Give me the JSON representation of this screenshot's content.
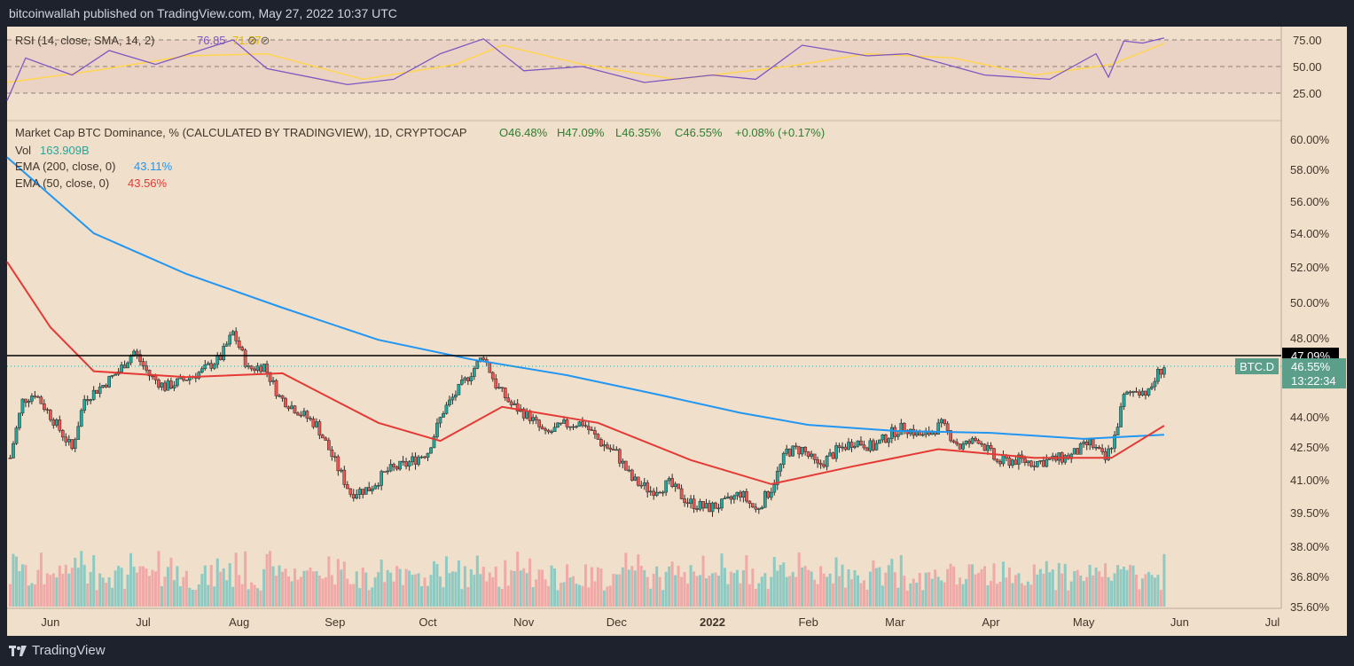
{
  "header": {
    "published": "bitcoinwallah published on TradingView.com, May 27, 2022 10:37 UTC"
  },
  "footer": {
    "brand": "TradingView"
  },
  "colors": {
    "background": "#f0dfca",
    "frame": "#1e222d",
    "up": "#26a69a",
    "down": "#ef5350",
    "ema200": "#2196f3",
    "ema50": "#e53935",
    "rsi": "#7e57c2",
    "rsi_sma": "#ffd54f",
    "vol_up": "#8ec9c2",
    "vol_down": "#f0a9a7"
  },
  "rsi_legend": {
    "title": "RSI (14, close, SMA, 14, 2)",
    "value1": "76.85",
    "value2": "71.57"
  },
  "main_legend": {
    "symbol": "Market Cap BTC Dominance, % (CALCULATED BY TRADINGVIEW), 1D, CRYPTOCAP",
    "o": "O46.48%",
    "h": "H47.09%",
    "l": "L46.35%",
    "c": "C46.55%",
    "chg": "+0.08% (+0.17%)",
    "vol_label": "Vol",
    "vol_value": "163.909B",
    "ema200_label": "EMA (200, close, 0)",
    "ema200_value": "43.11%",
    "ema50_label": "EMA (50, close, 0)",
    "ema50_value": "43.56%"
  },
  "price_labels": {
    "hline": "47.09%",
    "symbol_tag": "BTC.D",
    "last": "46.55%",
    "countdown": "13:22:34"
  },
  "chart_data": {
    "type": "candlestick",
    "title": "Market Cap BTC Dominance, % (CALCULATED BY TRADINGVIEW), 1D, CRYPTOCAP",
    "y_axis_ticks": [
      "60.00%",
      "58.00%",
      "56.00%",
      "54.00%",
      "52.00%",
      "50.00%",
      "48.00%",
      "44.00%",
      "42.50%",
      "41.00%",
      "39.50%",
      "38.00%",
      "36.80%",
      "35.60%"
    ],
    "rsi_axis_ticks": [
      "75.00",
      "50.00",
      "25.00"
    ],
    "x_axis_ticks": [
      "Jun",
      "Jul",
      "Aug",
      "Sep",
      "Oct",
      "Nov",
      "Dec",
      "2022",
      "Feb",
      "Mar",
      "Apr",
      "May",
      "Jun",
      "Jul"
    ],
    "horizontal_line": 47.09,
    "last_close": 46.55,
    "closes": [
      {
        "date": "2021-05-19",
        "value": 42.0
      },
      {
        "date": "2021-05-23",
        "value": 44.8
      },
      {
        "date": "2021-05-27",
        "value": 45.2
      },
      {
        "date": "2021-06-03",
        "value": 43.6
      },
      {
        "date": "2021-06-08",
        "value": 42.4
      },
      {
        "date": "2021-06-12",
        "value": 44.9
      },
      {
        "date": "2021-06-18",
        "value": 45.6
      },
      {
        "date": "2021-06-23",
        "value": 46.3
      },
      {
        "date": "2021-06-28",
        "value": 47.3
      },
      {
        "date": "2021-07-03",
        "value": 46.1
      },
      {
        "date": "2021-07-08",
        "value": 45.5
      },
      {
        "date": "2021-07-13",
        "value": 45.8
      },
      {
        "date": "2021-07-20",
        "value": 46.3
      },
      {
        "date": "2021-07-26",
        "value": 47.0
      },
      {
        "date": "2021-07-30",
        "value": 48.3
      },
      {
        "date": "2021-08-04",
        "value": 46.4
      },
      {
        "date": "2021-08-09",
        "value": 46.6
      },
      {
        "date": "2021-08-14",
        "value": 45.0
      },
      {
        "date": "2021-08-20",
        "value": 44.3
      },
      {
        "date": "2021-08-26",
        "value": 43.6
      },
      {
        "date": "2021-09-01",
        "value": 41.8
      },
      {
        "date": "2021-09-06",
        "value": 40.4
      },
      {
        "date": "2021-09-12",
        "value": 40.6
      },
      {
        "date": "2021-09-18",
        "value": 41.4
      },
      {
        "date": "2021-09-24",
        "value": 41.7
      },
      {
        "date": "2021-10-01",
        "value": 42.3
      },
      {
        "date": "2021-10-06",
        "value": 44.3
      },
      {
        "date": "2021-10-12",
        "value": 45.6
      },
      {
        "date": "2021-10-19",
        "value": 47.1
      },
      {
        "date": "2021-10-23",
        "value": 45.6
      },
      {
        "date": "2021-10-28",
        "value": 44.6
      },
      {
        "date": "2021-11-03",
        "value": 44.0
      },
      {
        "date": "2021-11-08",
        "value": 43.1
      },
      {
        "date": "2021-11-14",
        "value": 43.6
      },
      {
        "date": "2021-11-20",
        "value": 43.7
      },
      {
        "date": "2021-11-26",
        "value": 42.7
      },
      {
        "date": "2021-12-01",
        "value": 42.2
      },
      {
        "date": "2021-12-06",
        "value": 41.0
      },
      {
        "date": "2021-12-12",
        "value": 40.5
      },
      {
        "date": "2021-12-18",
        "value": 40.8
      },
      {
        "date": "2021-12-24",
        "value": 40.0
      },
      {
        "date": "2021-12-30",
        "value": 39.7
      },
      {
        "date": "2022-01-05",
        "value": 39.9
      },
      {
        "date": "2022-01-10",
        "value": 40.4
      },
      {
        "date": "2022-01-15",
        "value": 39.6
      },
      {
        "date": "2022-01-20",
        "value": 40.6
      },
      {
        "date": "2022-01-25",
        "value": 42.3
      },
      {
        "date": "2022-01-30",
        "value": 42.4
      },
      {
        "date": "2022-02-04",
        "value": 41.6
      },
      {
        "date": "2022-02-10",
        "value": 42.3
      },
      {
        "date": "2022-02-16",
        "value": 42.8
      },
      {
        "date": "2022-02-22",
        "value": 42.5
      },
      {
        "date": "2022-02-28",
        "value": 43.2
      },
      {
        "date": "2022-03-04",
        "value": 43.5
      },
      {
        "date": "2022-03-10",
        "value": 43.0
      },
      {
        "date": "2022-03-16",
        "value": 43.6
      },
      {
        "date": "2022-03-22",
        "value": 42.5
      },
      {
        "date": "2022-03-28",
        "value": 42.9
      },
      {
        "date": "2022-04-03",
        "value": 41.8
      },
      {
        "date": "2022-04-09",
        "value": 41.9
      },
      {
        "date": "2022-04-15",
        "value": 41.8
      },
      {
        "date": "2022-04-21",
        "value": 41.9
      },
      {
        "date": "2022-04-27",
        "value": 42.1
      },
      {
        "date": "2022-05-03",
        "value": 42.7
      },
      {
        "date": "2022-05-08",
        "value": 41.9
      },
      {
        "date": "2022-05-11",
        "value": 43.0
      },
      {
        "date": "2022-05-14",
        "value": 45.0
      },
      {
        "date": "2022-05-18",
        "value": 45.4
      },
      {
        "date": "2022-05-22",
        "value": 45.2
      },
      {
        "date": "2022-05-25",
        "value": 46.2
      },
      {
        "date": "2022-05-27",
        "value": 46.55
      }
    ],
    "series": [
      {
        "name": "EMA (200, close, 0)",
        "last": 43.11,
        "values": [
          {
            "date": "2021-05-18",
            "value": 58.8
          },
          {
            "date": "2021-06-15",
            "value": 54.0
          },
          {
            "date": "2021-07-15",
            "value": 51.6
          },
          {
            "date": "2021-08-15",
            "value": 49.7
          },
          {
            "date": "2021-09-15",
            "value": 47.9
          },
          {
            "date": "2021-10-15",
            "value": 46.9
          },
          {
            "date": "2021-11-15",
            "value": 46.1
          },
          {
            "date": "2021-12-15",
            "value": 45.1
          },
          {
            "date": "2022-01-10",
            "value": 44.2
          },
          {
            "date": "2022-02-01",
            "value": 43.6
          },
          {
            "date": "2022-03-01",
            "value": 43.3
          },
          {
            "date": "2022-04-01",
            "value": 43.2
          },
          {
            "date": "2022-05-01",
            "value": 42.9
          },
          {
            "date": "2022-05-27",
            "value": 43.11
          }
        ]
      },
      {
        "name": "EMA (50, close, 0)",
        "last": 43.56,
        "values": [
          {
            "date": "2021-05-18",
            "value": 52.3
          },
          {
            "date": "2021-06-01",
            "value": 48.6
          },
          {
            "date": "2021-06-15",
            "value": 46.3
          },
          {
            "date": "2021-07-15",
            "value": 46.0
          },
          {
            "date": "2021-08-15",
            "value": 46.2
          },
          {
            "date": "2021-09-15",
            "value": 43.7
          },
          {
            "date": "2021-10-05",
            "value": 42.8
          },
          {
            "date": "2021-10-25",
            "value": 44.5
          },
          {
            "date": "2021-11-25",
            "value": 43.7
          },
          {
            "date": "2021-12-25",
            "value": 41.9
          },
          {
            "date": "2022-01-20",
            "value": 40.8
          },
          {
            "date": "2022-02-15",
            "value": 41.6
          },
          {
            "date": "2022-03-15",
            "value": 42.4
          },
          {
            "date": "2022-04-15",
            "value": 42.0
          },
          {
            "date": "2022-05-10",
            "value": 42.0
          },
          {
            "date": "2022-05-27",
            "value": 43.56
          }
        ]
      },
      {
        "name": "RSI (14, close)",
        "last": 76.85,
        "values": [
          {
            "date": "2021-05-18",
            "value": 18
          },
          {
            "date": "2021-05-24",
            "value": 58
          },
          {
            "date": "2021-06-08",
            "value": 42
          },
          {
            "date": "2021-06-20",
            "value": 65
          },
          {
            "date": "2021-07-05",
            "value": 52
          },
          {
            "date": "2021-07-30",
            "value": 75
          },
          {
            "date": "2021-08-10",
            "value": 48
          },
          {
            "date": "2021-09-05",
            "value": 33
          },
          {
            "date": "2021-09-20",
            "value": 38
          },
          {
            "date": "2021-10-05",
            "value": 62
          },
          {
            "date": "2021-10-19",
            "value": 76
          },
          {
            "date": "2021-11-01",
            "value": 46
          },
          {
            "date": "2021-11-20",
            "value": 50
          },
          {
            "date": "2021-12-10",
            "value": 35
          },
          {
            "date": "2022-01-01",
            "value": 42
          },
          {
            "date": "2022-01-15",
            "value": 38
          },
          {
            "date": "2022-01-30",
            "value": 70
          },
          {
            "date": "2022-02-20",
            "value": 60
          },
          {
            "date": "2022-03-05",
            "value": 62
          },
          {
            "date": "2022-03-30",
            "value": 42
          },
          {
            "date": "2022-04-20",
            "value": 38
          },
          {
            "date": "2022-05-05",
            "value": 62
          },
          {
            "date": "2022-05-09",
            "value": 40
          },
          {
            "date": "2022-05-14",
            "value": 74
          },
          {
            "date": "2022-05-20",
            "value": 72
          },
          {
            "date": "2022-05-27",
            "value": 76.85
          }
        ]
      },
      {
        "name": "RSI SMA (14)",
        "last": 71.57,
        "values": [
          {
            "date": "2021-05-18",
            "value": 35
          },
          {
            "date": "2021-06-15",
            "value": 46
          },
          {
            "date": "2021-07-15",
            "value": 60
          },
          {
            "date": "2021-08-10",
            "value": 62
          },
          {
            "date": "2021-09-10",
            "value": 38
          },
          {
            "date": "2021-10-10",
            "value": 52
          },
          {
            "date": "2021-10-25",
            "value": 70
          },
          {
            "date": "2021-11-20",
            "value": 52
          },
          {
            "date": "2021-12-20",
            "value": 38
          },
          {
            "date": "2022-01-25",
            "value": 50
          },
          {
            "date": "2022-02-20",
            "value": 62
          },
          {
            "date": "2022-03-20",
            "value": 58
          },
          {
            "date": "2022-04-15",
            "value": 42
          },
          {
            "date": "2022-05-10",
            "value": 52
          },
          {
            "date": "2022-05-27",
            "value": 71.57
          }
        ]
      }
    ]
  }
}
